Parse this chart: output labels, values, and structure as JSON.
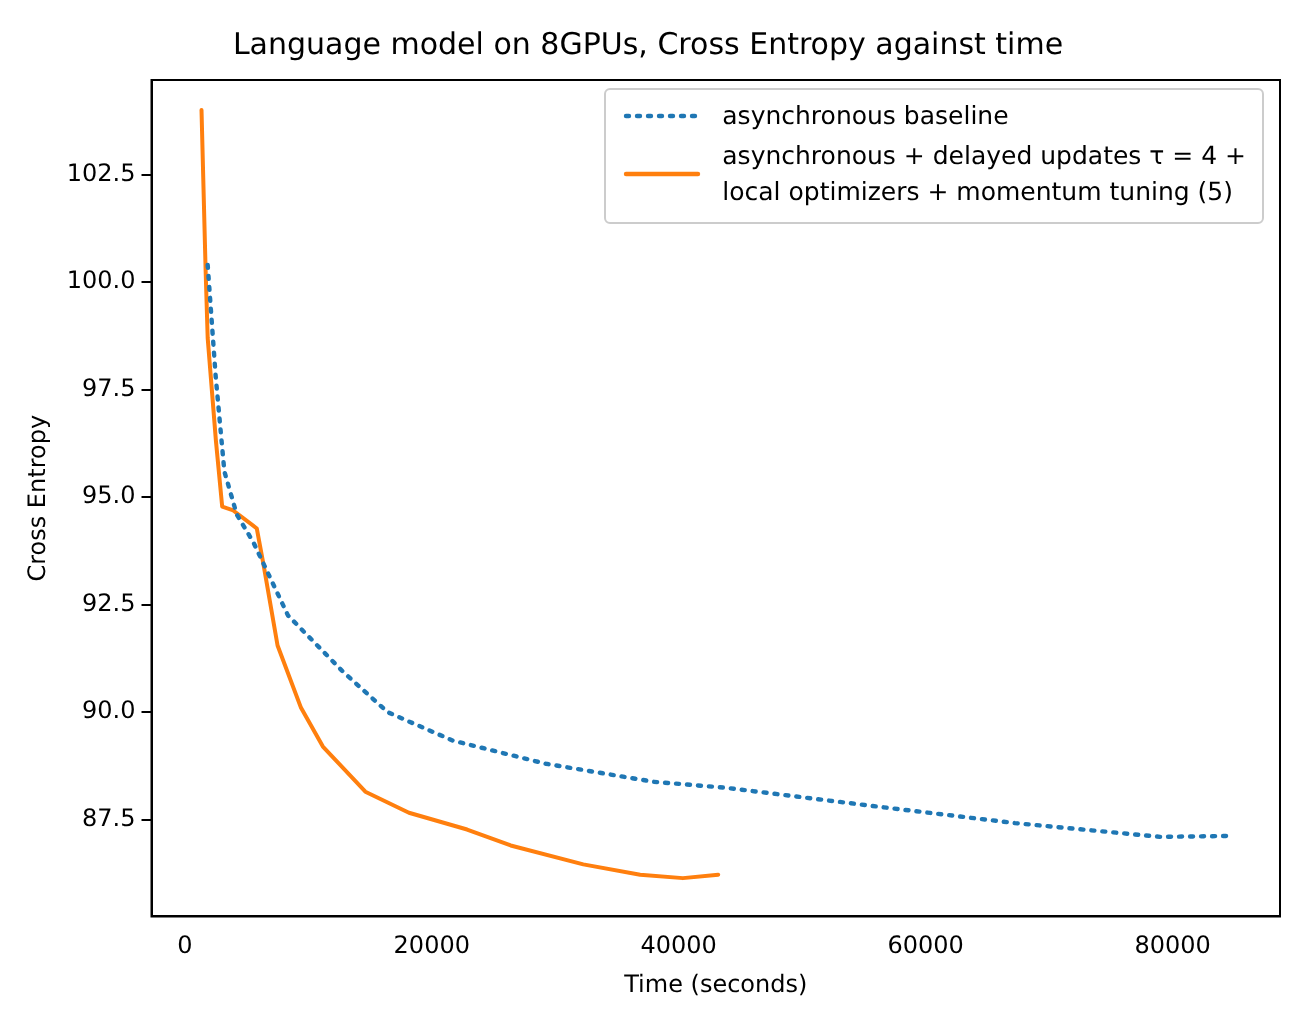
{
  "chart_data": {
    "type": "line",
    "title": "Language model on 8GPUs, Cross Entropy against time",
    "xlabel": "Time (seconds)",
    "ylabel": "Cross Entropy",
    "xlim": [
      -2700,
      88700
    ],
    "ylim": [
      85.25,
      104.7
    ],
    "xticks": [
      0,
      20000,
      40000,
      60000,
      80000
    ],
    "yticks": [
      {
        "value": 87.5,
        "label": "87.5"
      },
      {
        "value": 90,
        "label": "90.0"
      },
      {
        "value": 92.5,
        "label": "92.5"
      },
      {
        "value": 95,
        "label": "95.0"
      },
      {
        "value": 97.5,
        "label": "97.5"
      },
      {
        "value": 100,
        "label": "100.0"
      },
      {
        "value": 102.5,
        "label": "102.5"
      }
    ],
    "grid": false,
    "legend": "top right",
    "marker": "none",
    "series": [
      {
        "name": "asynchronous baseline",
        "color": "#1f77b4",
        "line_style": "dotted",
        "x": [
          1850,
          2200,
          2500,
          3200,
          4200,
          5550,
          8350,
          12770,
          16420,
          21680,
          29240,
          37980,
          43870,
          55630,
          67230,
          79000,
          84500
        ],
        "values": [
          100.4,
          99.0,
          97.8,
          95.6,
          94.6,
          93.95,
          92.25,
          90.95,
          90.0,
          89.34,
          88.8,
          88.38,
          88.24,
          87.82,
          87.42,
          87.1,
          87.12
        ]
      },
      {
        "name": "asynchronous + delayed updates τ = 4 +\nlocal optimizers + momentum tuning (5)",
        "color": "#ff7f0e",
        "line_style": "solid",
        "x": [
          1350,
          1680,
          1850,
          2520,
          3025,
          3865,
          5830,
          6390,
          7510,
          9410,
          11180,
          14620,
          18150,
          22860,
          26390,
          32270,
          36880,
          40340,
          43200
        ],
        "values": [
          104.0,
          100.3,
          98.7,
          96.3,
          94.78,
          94.7,
          94.27,
          93.4,
          91.55,
          90.1,
          89.2,
          88.15,
          87.66,
          87.27,
          86.9,
          86.46,
          86.22,
          86.14,
          86.22
        ]
      }
    ]
  }
}
